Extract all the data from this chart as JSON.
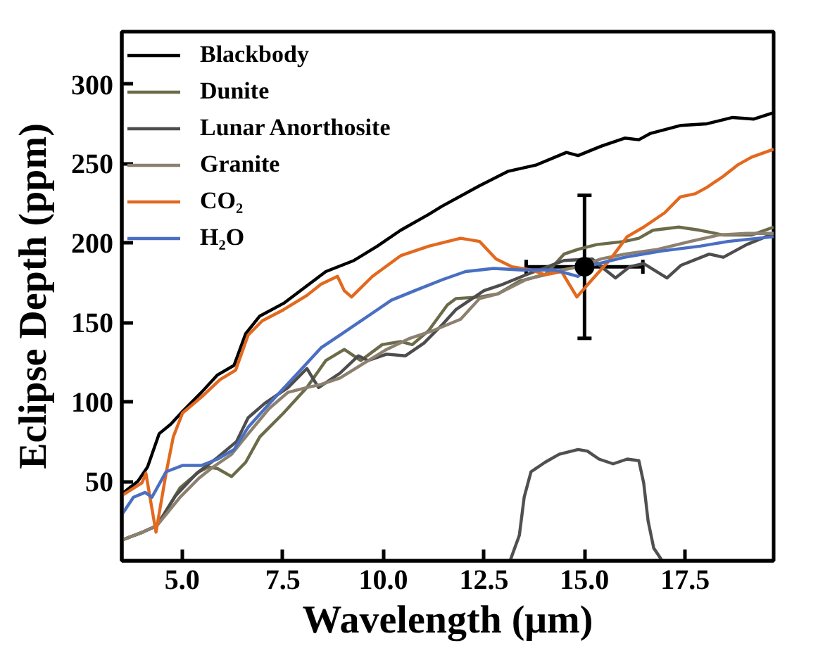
{
  "chart_data": {
    "type": "line",
    "xlabel": "Wavelength (μm)",
    "ylabel": "Eclipse Depth (ppm)",
    "xlim": [
      3.5,
      19.7
    ],
    "ylim": [
      0,
      333
    ],
    "xticks": [
      {
        "value": 5,
        "label": "5.0"
      },
      7.5,
      {
        "value": 10,
        "label": "10.0"
      },
      12.5,
      {
        "value": 15,
        "label": "15.0"
      },
      17.5
    ],
    "yticks": [
      50,
      100,
      150,
      200,
      250,
      300
    ],
    "grid": false,
    "legend": "top left",
    "series": [
      {
        "name": "Blackbody",
        "color": "#000000",
        "x": [
          3.5,
          3.9,
          4.14,
          4.43,
          4.72,
          5.01,
          5.48,
          5.88,
          6.29,
          6.58,
          6.93,
          7.52,
          8.1,
          8.57,
          9.27,
          9.85,
          10.43,
          11.13,
          11.45,
          12.39,
          13.09,
          13.79,
          14.55,
          14.84,
          15.42,
          16.0,
          16.35,
          16.64,
          17.4,
          18.04,
          18.68,
          19.21,
          19.7
        ],
        "values": [
          42,
          50,
          59,
          80,
          86,
          94,
          106,
          117,
          123,
          143,
          154,
          162,
          173,
          182,
          189,
          198,
          208,
          218,
          223,
          236,
          245,
          249,
          257,
          255,
          261,
          266,
          265,
          269,
          274,
          275,
          279,
          278,
          282
        ]
      },
      {
        "name": "Dunite",
        "color": "#6b6b4a",
        "x": [
          3.5,
          4.02,
          4.37,
          4.95,
          5.42,
          5.65,
          5.88,
          6.23,
          6.58,
          6.93,
          7.52,
          8.1,
          8.57,
          9.03,
          9.44,
          9.97,
          10.43,
          10.72,
          11.13,
          11.59,
          11.8,
          12.39,
          12.85,
          13.38,
          14.02,
          14.49,
          14.84,
          15.3,
          16.0,
          16.35,
          16.7,
          17.34,
          17.87,
          18.45,
          19.15,
          19.7
        ],
        "values": [
          13,
          18,
          22,
          46,
          56,
          59,
          58,
          53,
          62,
          78,
          93,
          109,
          126,
          133,
          126,
          136,
          138,
          136,
          145,
          161,
          165,
          166,
          168,
          176,
          180,
          193,
          196,
          199,
          201,
          203,
          208,
          210,
          208,
          205,
          205,
          210
        ]
      },
      {
        "name": "Lunar Anorthosite",
        "color": "#4d4d4d",
        "x": [
          3.5,
          4.02,
          4.37,
          4.84,
          5.36,
          5.88,
          6.35,
          6.64,
          7.05,
          7.63,
          8.1,
          8.39,
          8.92,
          9.38,
          9.62,
          10.08,
          10.55,
          11.01,
          11.48,
          11.8,
          12.5,
          12.97,
          13.55,
          14.49,
          15.19,
          15.42,
          15.77,
          16.12,
          16.47,
          17.05,
          17.4,
          18.1,
          18.45,
          19.03,
          19.7
        ],
        "values": [
          13,
          18,
          22,
          41,
          55,
          65,
          75,
          90,
          99,
          109,
          121,
          109,
          118,
          129,
          126,
          130,
          129,
          137,
          149,
          158,
          170,
          174,
          180,
          189,
          190,
          185,
          178,
          185,
          187,
          178,
          186,
          193,
          191,
          199,
          206
        ]
      },
      {
        "name": "Granite",
        "color": "#8c8170",
        "x": [
          3.5,
          4.02,
          4.37,
          4.95,
          5.42,
          5.77,
          6.23,
          6.58,
          7.17,
          7.63,
          8.1,
          8.45,
          8.92,
          9.5,
          10.08,
          10.66,
          11.25,
          11.92,
          12.39,
          12.85,
          13.55,
          14.25,
          14.84,
          15.42,
          16.0,
          16.82,
          17.63,
          18.33,
          19.03,
          19.7
        ],
        "values": [
          13,
          18,
          22,
          40,
          52,
          59,
          67,
          78,
          96,
          106,
          109,
          111,
          115,
          124,
          133,
          140,
          145,
          152,
          165,
          168,
          177,
          182,
          185,
          190,
          193,
          196,
          201,
          205,
          206,
          206
        ]
      },
      {
        "name": "CO₂",
        "color": "#e2691e",
        "x": [
          3.5,
          4.0,
          4.1,
          4.35,
          4.6,
          4.78,
          5.01,
          5.48,
          5.94,
          6.33,
          6.64,
          6.99,
          7.52,
          8.1,
          8.45,
          8.86,
          9.03,
          9.21,
          9.73,
          10.43,
          11.13,
          11.92,
          12.39,
          12.8,
          13.2,
          13.67,
          14.02,
          14.43,
          14.81,
          15.19,
          15.65,
          16.06,
          16.47,
          16.99,
          17.38,
          17.75,
          18.04,
          18.45,
          18.8,
          19.15,
          19.7
        ],
        "values": [
          41,
          49,
          55,
          18,
          55,
          78,
          93,
          103,
          114,
          120,
          142,
          151,
          158,
          167,
          174,
          179,
          170,
          166,
          179,
          192,
          198,
          203,
          201,
          190,
          185,
          183,
          180,
          182,
          166,
          177,
          190,
          204,
          210,
          219,
          229,
          231,
          235,
          242,
          249,
          254,
          259
        ]
      },
      {
        "name": "H₂O",
        "color": "#4a6fc2",
        "x": [
          3.5,
          3.79,
          4.08,
          4.25,
          4.6,
          5.01,
          5.48,
          5.88,
          6.29,
          6.64,
          7.17,
          7.87,
          8.45,
          8.92,
          9.62,
          10.2,
          10.78,
          11.48,
          12.04,
          12.74,
          13.44,
          14.25,
          14.84,
          15.19,
          16.0,
          16.93,
          17.87,
          18.57,
          19.7
        ],
        "values": [
          29,
          40,
          43,
          40,
          56,
          60,
          60,
          64,
          70,
          84,
          99,
          118,
          134,
          142,
          154,
          164,
          170,
          177,
          182,
          184,
          183,
          183,
          179,
          186,
          191,
          195,
          198,
          201,
          204
        ]
      },
      {
        "color": "#505050",
        "x": [
          13.15,
          13.38,
          13.5,
          13.67,
          14.02,
          14.37,
          14.84,
          15.07,
          15.36,
          15.71,
          16.06,
          16.35,
          16.47,
          16.58,
          16.72,
          16.93
        ],
        "values": [
          0,
          16,
          40,
          56,
          62,
          67,
          70,
          69,
          64,
          61,
          64,
          63,
          49,
          25,
          8,
          0
        ]
      },
      {
        "type": "scatter",
        "marker": "circle",
        "color": "#000000",
        "x": [
          15.0
        ],
        "values": [
          185
        ],
        "errors": [
          45
        ],
        "xerrors": [
          1.45
        ]
      }
    ]
  }
}
